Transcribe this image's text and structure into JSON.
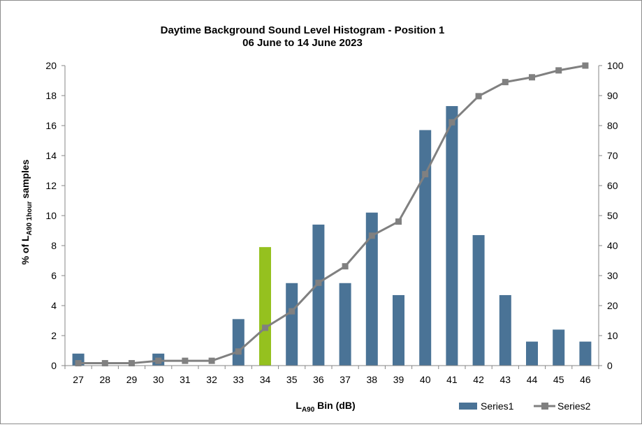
{
  "chart_data": {
    "type": "bar",
    "title_line1": "Daytime Background Sound Level Histogram - Position 1",
    "title_line2": "06 June to 14 June 2023",
    "xlabel": {
      "main": "L",
      "sub": "A90",
      "rest": " Bin (dB)"
    },
    "ylabel": {
      "pre": "% of L",
      "sub": "A90 1hour",
      "post": " samples"
    },
    "categories": [
      "27",
      "28",
      "29",
      "30",
      "31",
      "32",
      "33",
      "34",
      "35",
      "36",
      "37",
      "38",
      "39",
      "40",
      "41",
      "42",
      "43",
      "44",
      "45",
      "46"
    ],
    "y_left": {
      "min": 0,
      "max": 20,
      "ticks": [
        0,
        2,
        4,
        6,
        8,
        10,
        12,
        14,
        16,
        18,
        20
      ]
    },
    "y_right": {
      "min": 0,
      "max": 100,
      "ticks": [
        0,
        10,
        20,
        30,
        40,
        50,
        60,
        70,
        80,
        90,
        100
      ]
    },
    "grid": false,
    "legend_position": "bottom-right",
    "series": [
      {
        "name": "Series1",
        "type": "bar",
        "axis": "left",
        "color": "#4a7396",
        "highlight_color": "#95c11f",
        "highlight_category": "34",
        "values": [
          0.8,
          0,
          0,
          0.8,
          0,
          0,
          3.1,
          7.9,
          5.5,
          9.4,
          5.5,
          10.2,
          4.7,
          15.7,
          17.3,
          8.7,
          4.7,
          1.6,
          2.4,
          1.6
        ]
      },
      {
        "name": "Series2",
        "type": "line",
        "axis": "right",
        "color": "#808080",
        "values": [
          0.8,
          0.8,
          0.8,
          1.6,
          1.6,
          1.6,
          4.7,
          12.6,
          18.1,
          27.6,
          33.1,
          43.3,
          48.0,
          63.8,
          81.1,
          89.8,
          94.5,
          96.1,
          98.4,
          100
        ]
      }
    ]
  }
}
